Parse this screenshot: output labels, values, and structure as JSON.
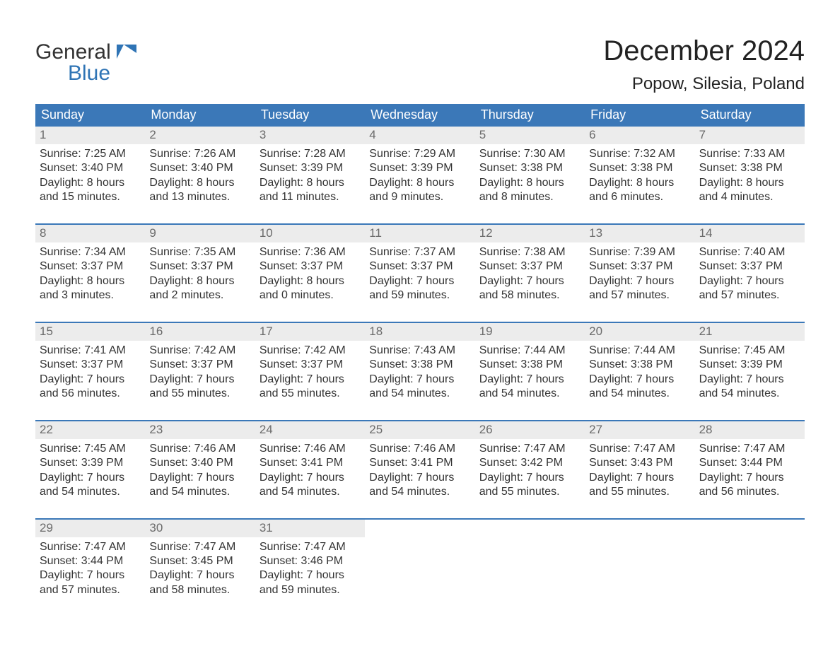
{
  "brand": {
    "line1": "General",
    "line2": "Blue",
    "text_color": "#333333",
    "accent_color": "#2f74b5"
  },
  "title": "December 2024",
  "location": "Popow, Silesia, Poland",
  "header_row_bg": "#3b78b8",
  "header_row_fg": "#ffffff",
  "day_number_bg": "#ececec",
  "day_number_fg": "#6b6b6b",
  "week_divider_color": "#3b78b8",
  "weekdays": [
    "Sunday",
    "Monday",
    "Tuesday",
    "Wednesday",
    "Thursday",
    "Friday",
    "Saturday"
  ],
  "weeks": [
    [
      {
        "n": "1",
        "sunrise": "Sunrise: 7:25 AM",
        "sunset": "Sunset: 3:40 PM",
        "daylight1": "Daylight: 8 hours",
        "daylight2": "and 15 minutes."
      },
      {
        "n": "2",
        "sunrise": "Sunrise: 7:26 AM",
        "sunset": "Sunset: 3:40 PM",
        "daylight1": "Daylight: 8 hours",
        "daylight2": "and 13 minutes."
      },
      {
        "n": "3",
        "sunrise": "Sunrise: 7:28 AM",
        "sunset": "Sunset: 3:39 PM",
        "daylight1": "Daylight: 8 hours",
        "daylight2": "and 11 minutes."
      },
      {
        "n": "4",
        "sunrise": "Sunrise: 7:29 AM",
        "sunset": "Sunset: 3:39 PM",
        "daylight1": "Daylight: 8 hours",
        "daylight2": "and 9 minutes."
      },
      {
        "n": "5",
        "sunrise": "Sunrise: 7:30 AM",
        "sunset": "Sunset: 3:38 PM",
        "daylight1": "Daylight: 8 hours",
        "daylight2": "and 8 minutes."
      },
      {
        "n": "6",
        "sunrise": "Sunrise: 7:32 AM",
        "sunset": "Sunset: 3:38 PM",
        "daylight1": "Daylight: 8 hours",
        "daylight2": "and 6 minutes."
      },
      {
        "n": "7",
        "sunrise": "Sunrise: 7:33 AM",
        "sunset": "Sunset: 3:38 PM",
        "daylight1": "Daylight: 8 hours",
        "daylight2": "and 4 minutes."
      }
    ],
    [
      {
        "n": "8",
        "sunrise": "Sunrise: 7:34 AM",
        "sunset": "Sunset: 3:37 PM",
        "daylight1": "Daylight: 8 hours",
        "daylight2": "and 3 minutes."
      },
      {
        "n": "9",
        "sunrise": "Sunrise: 7:35 AM",
        "sunset": "Sunset: 3:37 PM",
        "daylight1": "Daylight: 8 hours",
        "daylight2": "and 2 minutes."
      },
      {
        "n": "10",
        "sunrise": "Sunrise: 7:36 AM",
        "sunset": "Sunset: 3:37 PM",
        "daylight1": "Daylight: 8 hours",
        "daylight2": "and 0 minutes."
      },
      {
        "n": "11",
        "sunrise": "Sunrise: 7:37 AM",
        "sunset": "Sunset: 3:37 PM",
        "daylight1": "Daylight: 7 hours",
        "daylight2": "and 59 minutes."
      },
      {
        "n": "12",
        "sunrise": "Sunrise: 7:38 AM",
        "sunset": "Sunset: 3:37 PM",
        "daylight1": "Daylight: 7 hours",
        "daylight2": "and 58 minutes."
      },
      {
        "n": "13",
        "sunrise": "Sunrise: 7:39 AM",
        "sunset": "Sunset: 3:37 PM",
        "daylight1": "Daylight: 7 hours",
        "daylight2": "and 57 minutes."
      },
      {
        "n": "14",
        "sunrise": "Sunrise: 7:40 AM",
        "sunset": "Sunset: 3:37 PM",
        "daylight1": "Daylight: 7 hours",
        "daylight2": "and 57 minutes."
      }
    ],
    [
      {
        "n": "15",
        "sunrise": "Sunrise: 7:41 AM",
        "sunset": "Sunset: 3:37 PM",
        "daylight1": "Daylight: 7 hours",
        "daylight2": "and 56 minutes."
      },
      {
        "n": "16",
        "sunrise": "Sunrise: 7:42 AM",
        "sunset": "Sunset: 3:37 PM",
        "daylight1": "Daylight: 7 hours",
        "daylight2": "and 55 minutes."
      },
      {
        "n": "17",
        "sunrise": "Sunrise: 7:42 AM",
        "sunset": "Sunset: 3:37 PM",
        "daylight1": "Daylight: 7 hours",
        "daylight2": "and 55 minutes."
      },
      {
        "n": "18",
        "sunrise": "Sunrise: 7:43 AM",
        "sunset": "Sunset: 3:38 PM",
        "daylight1": "Daylight: 7 hours",
        "daylight2": "and 54 minutes."
      },
      {
        "n": "19",
        "sunrise": "Sunrise: 7:44 AM",
        "sunset": "Sunset: 3:38 PM",
        "daylight1": "Daylight: 7 hours",
        "daylight2": "and 54 minutes."
      },
      {
        "n": "20",
        "sunrise": "Sunrise: 7:44 AM",
        "sunset": "Sunset: 3:38 PM",
        "daylight1": "Daylight: 7 hours",
        "daylight2": "and 54 minutes."
      },
      {
        "n": "21",
        "sunrise": "Sunrise: 7:45 AM",
        "sunset": "Sunset: 3:39 PM",
        "daylight1": "Daylight: 7 hours",
        "daylight2": "and 54 minutes."
      }
    ],
    [
      {
        "n": "22",
        "sunrise": "Sunrise: 7:45 AM",
        "sunset": "Sunset: 3:39 PM",
        "daylight1": "Daylight: 7 hours",
        "daylight2": "and 54 minutes."
      },
      {
        "n": "23",
        "sunrise": "Sunrise: 7:46 AM",
        "sunset": "Sunset: 3:40 PM",
        "daylight1": "Daylight: 7 hours",
        "daylight2": "and 54 minutes."
      },
      {
        "n": "24",
        "sunrise": "Sunrise: 7:46 AM",
        "sunset": "Sunset: 3:41 PM",
        "daylight1": "Daylight: 7 hours",
        "daylight2": "and 54 minutes."
      },
      {
        "n": "25",
        "sunrise": "Sunrise: 7:46 AM",
        "sunset": "Sunset: 3:41 PM",
        "daylight1": "Daylight: 7 hours",
        "daylight2": "and 54 minutes."
      },
      {
        "n": "26",
        "sunrise": "Sunrise: 7:47 AM",
        "sunset": "Sunset: 3:42 PM",
        "daylight1": "Daylight: 7 hours",
        "daylight2": "and 55 minutes."
      },
      {
        "n": "27",
        "sunrise": "Sunrise: 7:47 AM",
        "sunset": "Sunset: 3:43 PM",
        "daylight1": "Daylight: 7 hours",
        "daylight2": "and 55 minutes."
      },
      {
        "n": "28",
        "sunrise": "Sunrise: 7:47 AM",
        "sunset": "Sunset: 3:44 PM",
        "daylight1": "Daylight: 7 hours",
        "daylight2": "and 56 minutes."
      }
    ],
    [
      {
        "n": "29",
        "sunrise": "Sunrise: 7:47 AM",
        "sunset": "Sunset: 3:44 PM",
        "daylight1": "Daylight: 7 hours",
        "daylight2": "and 57 minutes."
      },
      {
        "n": "30",
        "sunrise": "Sunrise: 7:47 AM",
        "sunset": "Sunset: 3:45 PM",
        "daylight1": "Daylight: 7 hours",
        "daylight2": "and 58 minutes."
      },
      {
        "n": "31",
        "sunrise": "Sunrise: 7:47 AM",
        "sunset": "Sunset: 3:46 PM",
        "daylight1": "Daylight: 7 hours",
        "daylight2": "and 59 minutes."
      },
      null,
      null,
      null,
      null
    ]
  ]
}
